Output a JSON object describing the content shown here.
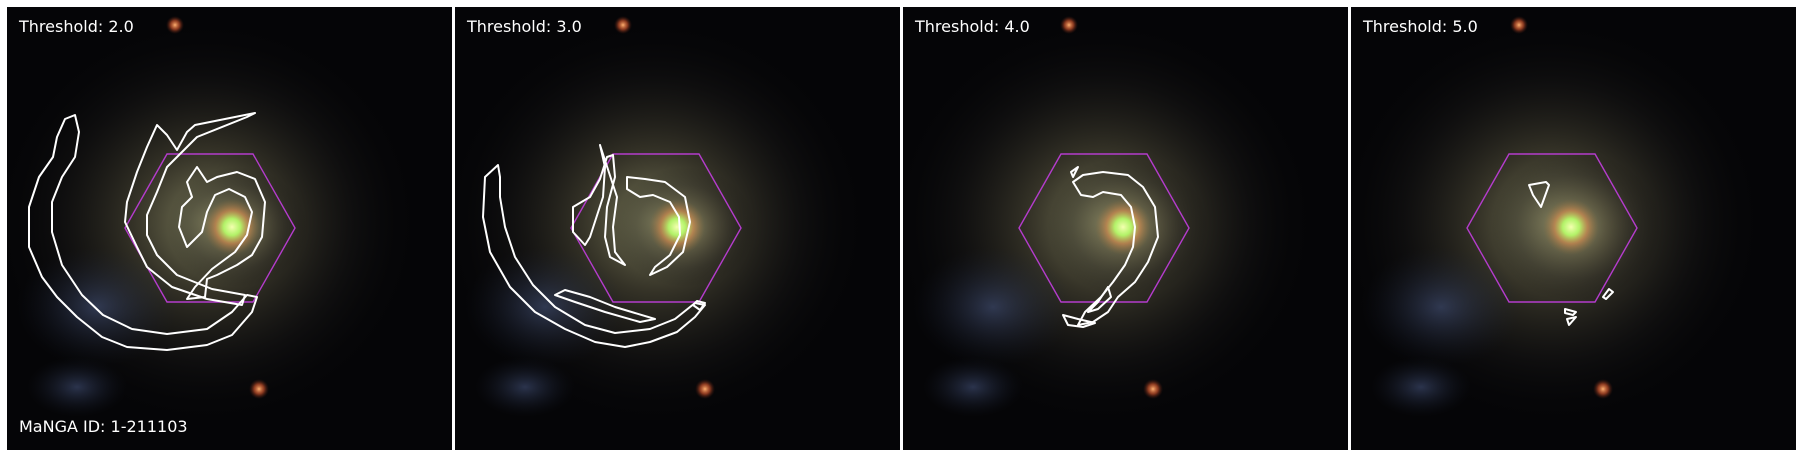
{
  "galaxy_id_label": "MaNGA ID: 1-211103",
  "panels": [
    {
      "threshold_label": "Threshold: 2.0"
    },
    {
      "threshold_label": "Threshold: 3.0"
    },
    {
      "threshold_label": "Threshold: 4.0"
    },
    {
      "threshold_label": "Threshold: 5.0"
    }
  ],
  "colors": {
    "hexagon": "#b43ccc",
    "contour": "#ffffff",
    "background": "#050507",
    "core": "#b8ff6a"
  }
}
